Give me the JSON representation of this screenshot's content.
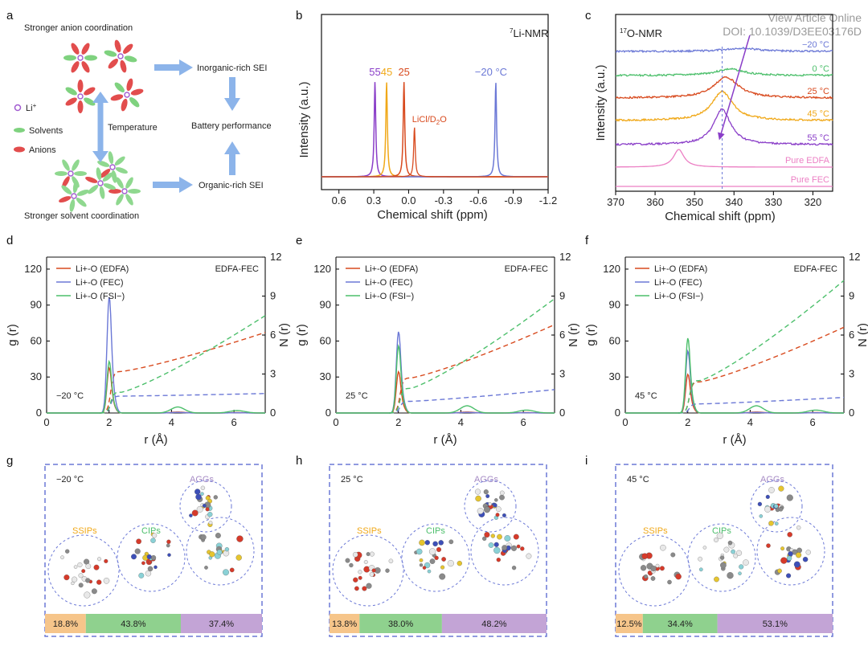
{
  "watermark": {
    "line1": "View Article Online",
    "line2": "DOI: 10.1039/D3EE03176D"
  },
  "colors": {
    "purple": "#8a3ec8",
    "orange": "#f0a818",
    "red": "#d84a1e",
    "blue": "#6b78d6",
    "green": "#4cbf6b",
    "pink": "#ec7fc4",
    "schematic_arrow": "#8cb4ea",
    "box": "#6b78d6",
    "ssip": "#f6c58a",
    "cip": "#8fd18e",
    "agg": "#c3a4d6"
  },
  "panel_a": {
    "label": "a",
    "title_top": "Stronger anion coordination",
    "title_bottom": "Stronger solvent coordination",
    "legend": {
      "li": "Li",
      "li_sup": "+",
      "solvents": "Solvents",
      "anions": "Anions"
    },
    "temperature": "Temperature",
    "inorganic": "Inorganic-rich SEI",
    "organic": "Organic-rich SEI",
    "performance": "Battery performance"
  },
  "panel_b": {
    "label": "b"
  },
  "panel_c": {
    "label": "c"
  },
  "panel_d": {
    "label": "d"
  },
  "panel_e": {
    "label": "e"
  },
  "panel_f": {
    "label": "f"
  },
  "panel_g": {
    "label": "g",
    "temp": "−20 °C",
    "agg": "AGGs",
    "cip": "CIPs",
    "ssip": "SSIPs"
  },
  "panel_h": {
    "label": "h",
    "temp": "25 °C",
    "agg": "AGGs",
    "cip": "CIPs",
    "ssip": "SSIPs"
  },
  "panel_i": {
    "label": "i",
    "temp": "45 °C",
    "agg": "AGGs",
    "cip": "CIPs",
    "ssip": "SSIPs"
  },
  "chart_data": [
    {
      "id": "b",
      "type": "line",
      "title": "7Li-NMR",
      "xlabel": "Chemical shift (ppm)",
      "ylabel": "Intensity (a.u.)",
      "xlim": [
        0.75,
        -1.2
      ],
      "xticks": [
        0.6,
        0.3,
        0,
        -0.3,
        -0.6,
        -0.9,
        -1.2
      ],
      "xtick_labels": [
        "0.6",
        "0.3",
        "0.0",
        "-0.3",
        "-0.6",
        "-0.9",
        "-1.2"
      ],
      "annotation": "LiCl/D2O",
      "series": [
        {
          "name": "55",
          "color": "#8a3ec8",
          "peak_ppm": 0.29
        },
        {
          "name": "45",
          "color": "#f0a818",
          "peak_ppm": 0.19
        },
        {
          "name": "25",
          "color": "#d84a1e",
          "peak_ppm": 0.04
        },
        {
          "name": "−20 °C",
          "color": "#6b78d6",
          "peak_ppm": -0.75
        }
      ],
      "reference": {
        "name": "LiCl/D2O",
        "peak_ppm": 0.0,
        "color": "#d84a1e"
      }
    },
    {
      "id": "c",
      "type": "line",
      "title": "17O-NMR",
      "xlabel": "Chemical shift (ppm)",
      "ylabel": "Intensity (a.u.)",
      "xlim": [
        370,
        315
      ],
      "xticks": [
        370,
        360,
        350,
        340,
        330,
        320
      ],
      "dashed_reference_ppm": 343,
      "series": [
        {
          "name": "−20 °C",
          "color": "#6b78d6",
          "peak_ppm": 338
        },
        {
          "name": "0 °C",
          "color": "#4cbf6b",
          "peak_ppm": 341
        },
        {
          "name": "25 °C",
          "color": "#d84a1e",
          "peak_ppm": 342
        },
        {
          "name": "45 °C",
          "color": "#f0a818",
          "peak_ppm": 343
        },
        {
          "name": "55 °C",
          "color": "#8a3ec8",
          "peak_ppm": 343
        },
        {
          "name": "Pure EDFA",
          "color": "#ec7fc4",
          "peak_ppm": 354
        },
        {
          "name": "Pure FEC",
          "color": "#ec7fc4",
          "peak_ppm": null
        }
      ]
    },
    {
      "id": "d",
      "type": "line",
      "temperature": "−20 °C",
      "system": "EDFA-FEC",
      "xlabel": "r (Å)",
      "ylabel": "g (r)",
      "y2label": "N (r)",
      "xlim": [
        0,
        7
      ],
      "ylim": [
        0,
        130
      ],
      "y2lim": [
        0,
        12
      ],
      "xticks": [
        0,
        2,
        4,
        6
      ],
      "yticks": [
        0,
        30,
        60,
        90,
        120
      ],
      "y2ticks": [
        0,
        3,
        6,
        9,
        12
      ],
      "series": [
        {
          "name": "Li+-O (EDFA)",
          "color": "#d84a1e",
          "g_peak": 35,
          "g_second": 0.8,
          "N_plateau": 3.2,
          "N_end": 6.2
        },
        {
          "name": "Li+-O (FEC)",
          "color": "#6b78d6",
          "g_peak": 90,
          "g_second": 0.5,
          "N_plateau": 1.3,
          "N_end": 1.5
        },
        {
          "name": "Li+-O (FSI−)",
          "color": "#4cbf6b",
          "g_peak": 40,
          "g_second": 5,
          "N_plateau": 1.6,
          "N_end": 7.5
        }
      ]
    },
    {
      "id": "e",
      "type": "line",
      "temperature": "25 °C",
      "system": "EDFA-FEC",
      "xlabel": "r (Å)",
      "ylabel": "g (r)",
      "y2label": "N (r)",
      "xlim": [
        0,
        7
      ],
      "ylim": [
        0,
        130
      ],
      "y2lim": [
        0,
        12
      ],
      "xticks": [
        0,
        2,
        4,
        6
      ],
      "yticks": [
        0,
        30,
        60,
        90,
        120
      ],
      "y2ticks": [
        0,
        3,
        6,
        9,
        12
      ],
      "series": [
        {
          "name": "Li+-O (EDFA)",
          "color": "#d84a1e",
          "g_peak": 32,
          "g_second": 0.8,
          "N_plateau": 2.7,
          "N_end": 6.8
        },
        {
          "name": "Li+-O (FEC)",
          "color": "#6b78d6",
          "g_peak": 63,
          "g_second": 0.5,
          "N_plateau": 0.9,
          "N_end": 1.8
        },
        {
          "name": "Li+-O (FSI−)",
          "color": "#4cbf6b",
          "g_peak": 52,
          "g_second": 6,
          "N_plateau": 1.9,
          "N_end": 8.8
        }
      ]
    },
    {
      "id": "f",
      "type": "line",
      "temperature": "45 °C",
      "system": "EDFA-FEC",
      "xlabel": "r (Å)",
      "ylabel": "g (r)",
      "y2label": "N (r)",
      "xlim": [
        0,
        7
      ],
      "ylim": [
        0,
        130
      ],
      "y2lim": [
        0,
        12
      ],
      "xticks": [
        0,
        2,
        4,
        6
      ],
      "yticks": [
        0,
        30,
        60,
        90,
        120
      ],
      "y2ticks": [
        0,
        3,
        6,
        9,
        12
      ],
      "series": [
        {
          "name": "Li+-O (EDFA)",
          "color": "#d84a1e",
          "g_peak": 30,
          "g_second": 0.8,
          "N_plateau": 2.4,
          "N_end": 6.6
        },
        {
          "name": "Li+-O (FEC)",
          "color": "#6b78d6",
          "g_peak": 48,
          "g_second": 0.5,
          "N_plateau": 0.7,
          "N_end": 1.2
        },
        {
          "name": "Li+-O (FSI−)",
          "color": "#4cbf6b",
          "g_peak": 58,
          "g_second": 6,
          "N_plateau": 2.5,
          "N_end": 10.2
        }
      ]
    },
    {
      "id": "ghi",
      "type": "bar",
      "categories": [
        "SSIPs",
        "CIPs",
        "AGGs"
      ],
      "series": [
        {
          "name": "−20 °C",
          "values": [
            18.8,
            43.8,
            37.4
          ],
          "labels": [
            "18.8%",
            "43.8%",
            "37.4%"
          ]
        },
        {
          "name": "25 °C",
          "values": [
            13.8,
            38.0,
            48.2
          ],
          "labels": [
            "13.8%",
            "38.0%",
            "48.2%"
          ]
        },
        {
          "name": "45 °C",
          "values": [
            12.5,
            34.4,
            53.1
          ],
          "labels": [
            "12.5%",
            "34.4%",
            "53.1%"
          ]
        }
      ]
    }
  ]
}
